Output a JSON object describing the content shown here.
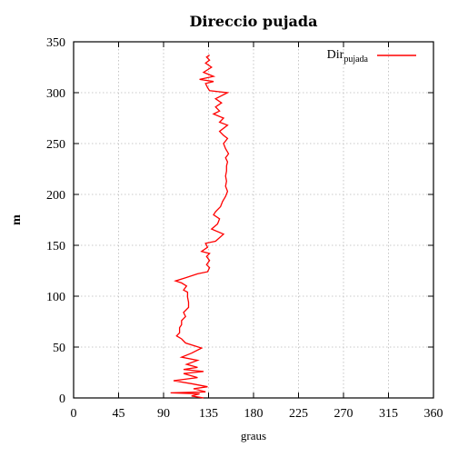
{
  "chart_data": {
    "type": "line",
    "title": "Direccio pujada",
    "xlabel": "graus",
    "ylabel": "m",
    "xlim": [
      0,
      360
    ],
    "ylim": [
      0,
      350
    ],
    "xticks": [
      "0",
      "45",
      "90",
      "135",
      "180",
      "225",
      "270",
      "315",
      "360"
    ],
    "yticks": [
      "0",
      "50",
      "100",
      "150",
      "200",
      "250",
      "300",
      "350"
    ],
    "grid": true,
    "legend_position": "top-right",
    "legend": {
      "base": "Dir",
      "sub": "pujada"
    },
    "series": [
      {
        "name": "Dirpujada",
        "color": "#ff0000",
        "points": [
          [
            130,
            0
          ],
          [
            118,
            2
          ],
          [
            126,
            4
          ],
          [
            97,
            5
          ],
          [
            132,
            6
          ],
          [
            120,
            9
          ],
          [
            134,
            11
          ],
          [
            118,
            14
          ],
          [
            100,
            17
          ],
          [
            124,
            20
          ],
          [
            110,
            24
          ],
          [
            130,
            26
          ],
          [
            110,
            28
          ],
          [
            124,
            30
          ],
          [
            113,
            33
          ],
          [
            124,
            37
          ],
          [
            108,
            40
          ],
          [
            118,
            44
          ],
          [
            128,
            49
          ],
          [
            112,
            54
          ],
          [
            108,
            58
          ],
          [
            103,
            61
          ],
          [
            106,
            64
          ],
          [
            106,
            69
          ],
          [
            108,
            72
          ],
          [
            108,
            76
          ],
          [
            112,
            80
          ],
          [
            110,
            84
          ],
          [
            115,
            89
          ],
          [
            115,
            94
          ],
          [
            114,
            99
          ],
          [
            114,
            104
          ],
          [
            110,
            106
          ],
          [
            113,
            110
          ],
          [
            108,
            113
          ],
          [
            102,
            115
          ],
          [
            112,
            118
          ],
          [
            124,
            122
          ],
          [
            134,
            124
          ],
          [
            136,
            128
          ],
          [
            133,
            131
          ],
          [
            136,
            135
          ],
          [
            133,
            139
          ],
          [
            136,
            142
          ],
          [
            128,
            144
          ],
          [
            134,
            148
          ],
          [
            132,
            152
          ],
          [
            142,
            154
          ],
          [
            150,
            161
          ],
          [
            138,
            166
          ],
          [
            144,
            171
          ],
          [
            146,
            176
          ],
          [
            140,
            180
          ],
          [
            142,
            183
          ],
          [
            147,
            188
          ],
          [
            149,
            193
          ],
          [
            152,
            198
          ],
          [
            154,
            203
          ],
          [
            152,
            208
          ],
          [
            153,
            213
          ],
          [
            152,
            218
          ],
          [
            153,
            223
          ],
          [
            153,
            228
          ],
          [
            154,
            232
          ],
          [
            152,
            236
          ],
          [
            155,
            240
          ],
          [
            152,
            245
          ],
          [
            150,
            250
          ],
          [
            154,
            255
          ],
          [
            150,
            258
          ],
          [
            146,
            262
          ],
          [
            154,
            268
          ],
          [
            146,
            271
          ],
          [
            150,
            275
          ],
          [
            140,
            279
          ],
          [
            146,
            282
          ],
          [
            142,
            286
          ],
          [
            148,
            290
          ],
          [
            142,
            294
          ],
          [
            154,
            300
          ],
          [
            136,
            302
          ],
          [
            134,
            305
          ],
          [
            132,
            309
          ],
          [
            140,
            311
          ],
          [
            126,
            313
          ],
          [
            140,
            316
          ],
          [
            130,
            320
          ],
          [
            138,
            325
          ],
          [
            132,
            329
          ],
          [
            136,
            332
          ],
          [
            133,
            335
          ],
          [
            136,
            337
          ]
        ]
      }
    ]
  }
}
